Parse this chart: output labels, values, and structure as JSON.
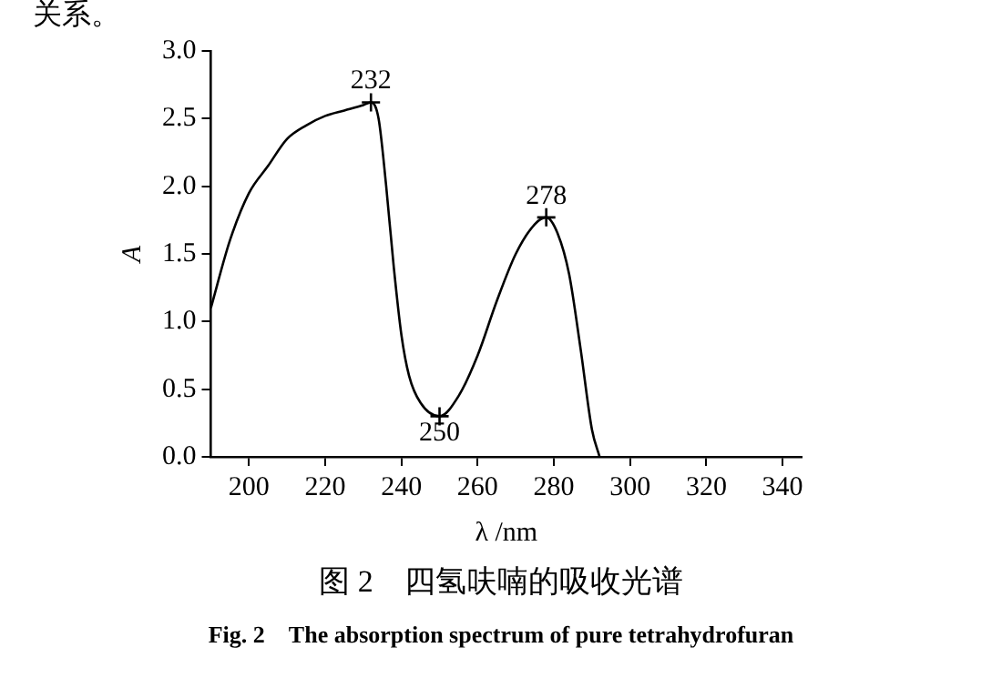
{
  "chart_data": {
    "type": "line",
    "title": "图 2　四氢呋喃的吸收光谱",
    "subtitle": "Fig. 2　The absorption spectrum of pure tetrahydrofuran",
    "xlabel": "λ /nm",
    "ylabel": "A",
    "series": [
      {
        "type": "line",
        "color": "#000000",
        "marker": "none",
        "x": [
          190,
          195,
          200,
          205,
          210,
          215,
          220,
          225,
          230,
          232,
          234,
          236,
          238,
          240,
          242,
          245,
          250,
          255,
          260,
          265,
          270,
          275,
          278,
          281,
          284,
          287,
          290,
          292
        ],
        "values": [
          1.1,
          1.6,
          1.95,
          2.15,
          2.35,
          2.45,
          2.52,
          2.56,
          2.6,
          2.62,
          2.5,
          2.0,
          1.4,
          0.9,
          0.6,
          0.4,
          0.3,
          0.45,
          0.75,
          1.15,
          1.5,
          1.72,
          1.77,
          1.65,
          1.35,
          0.8,
          0.2,
          0
        ]
      },
      {
        "type": "scatter",
        "color": "#000000",
        "marker": "cross",
        "x": [
          232,
          250,
          278
        ],
        "values": [
          2.62,
          0.3,
          1.77
        ]
      }
    ],
    "annotations": [
      "关系。",
      {
        "text": "232",
        "x": 232,
        "y": 2.62
      },
      {
        "text": "250",
        "x": 250,
        "y": 0.3
      },
      {
        "text": "278",
        "x": 278,
        "y": 1.77
      }
    ],
    "xlim": [
      190,
      345
    ],
    "xticks": [
      200,
      220,
      240,
      260,
      280,
      300,
      320,
      340
    ],
    "ylim": [
      0,
      3
    ],
    "yticks": [
      {
        "value": 0,
        "label": "0.0"
      },
      {
        "value": 0.5,
        "label": "0.5"
      },
      {
        "value": 1,
        "label": "1.0"
      },
      {
        "value": 1.5,
        "label": "1.5"
      },
      {
        "value": 2,
        "label": "2.0"
      },
      {
        "value": 2.5,
        "label": "2.5"
      },
      {
        "value": 3,
        "label": "3.0"
      }
    ],
    "grid": false,
    "legend": false
  }
}
